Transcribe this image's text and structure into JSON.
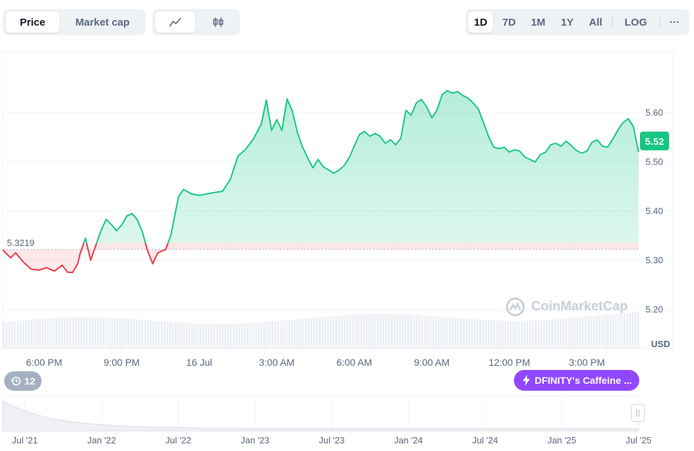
{
  "metric_tabs": [
    "Price",
    "Market cap"
  ],
  "active_metric": "Price",
  "chart_style_icons": [
    "line-chart-icon",
    "candlestick-icon"
  ],
  "range_options": [
    "1D",
    "7D",
    "1M",
    "1Y",
    "All",
    "LOG"
  ],
  "active_range": "1D",
  "more_label": "···",
  "current_price_label": "5.52",
  "reference_price_label": "5.3219",
  "currency_label": "USD",
  "history_badge_count": "12",
  "news_badge_text": "DFINITY's Caffeine ...",
  "watermark_text": "CoinMarketCap",
  "colors": {
    "up": "#16c784",
    "down": "#ea3943",
    "accent_purple": "#9147ff"
  },
  "overview_ticks": [
    "Jul '21",
    "Jan '22",
    "Jul '22",
    "Jan '23",
    "Jul '23",
    "Jan '24",
    "Jul '24",
    "Jan '25",
    "Jul '25"
  ],
  "chart_data": {
    "type": "line",
    "x_unit": "hours_from_start",
    "x_ticks": [
      {
        "label": "6:00 PM",
        "x": 1.6
      },
      {
        "label": "9:00 PM",
        "x": 4.6
      },
      {
        "label": "16 Jul",
        "x": 7.6
      },
      {
        "label": "3:00 AM",
        "x": 10.6
      },
      {
        "label": "6:00 AM",
        "x": 13.6
      },
      {
        "label": "9:00 AM",
        "x": 16.6
      },
      {
        "label": "12:00 PM",
        "x": 19.6
      },
      {
        "label": "3:00 PM",
        "x": 22.6
      }
    ],
    "y_ticks": [
      5.2,
      5.3,
      5.4,
      5.5,
      5.6
    ],
    "ylim": [
      5.1206,
      5.7237
    ],
    "xlim": [
      0,
      24.6
    ],
    "reference_price": 5.3219,
    "current_price": 5.52,
    "series": [
      {
        "values": [
          [
            0.0,
            5.321
          ],
          [
            0.3,
            5.305
          ],
          [
            0.5,
            5.315
          ],
          [
            0.8,
            5.296
          ],
          [
            1.1,
            5.282
          ],
          [
            1.4,
            5.28
          ],
          [
            1.7,
            5.285
          ],
          [
            2.0,
            5.278
          ],
          [
            2.3,
            5.29
          ],
          [
            2.5,
            5.276
          ],
          [
            2.7,
            5.275
          ],
          [
            2.9,
            5.293
          ],
          [
            3.0,
            5.315
          ],
          [
            3.2,
            5.345
          ],
          [
            3.4,
            5.3
          ],
          [
            3.6,
            5.33
          ],
          [
            3.8,
            5.36
          ],
          [
            4.0,
            5.383
          ],
          [
            4.2,
            5.373
          ],
          [
            4.4,
            5.36
          ],
          [
            4.6,
            5.372
          ],
          [
            4.8,
            5.39
          ],
          [
            5.0,
            5.395
          ],
          [
            5.2,
            5.383
          ],
          [
            5.4,
            5.358
          ],
          [
            5.6,
            5.32
          ],
          [
            5.8,
            5.293
          ],
          [
            6.0,
            5.315
          ],
          [
            6.3,
            5.322
          ],
          [
            6.5,
            5.35
          ],
          [
            6.8,
            5.43
          ],
          [
            7.0,
            5.444
          ],
          [
            7.3,
            5.435
          ],
          [
            7.6,
            5.432
          ],
          [
            7.9,
            5.435
          ],
          [
            8.2,
            5.438
          ],
          [
            8.5,
            5.44
          ],
          [
            8.8,
            5.464
          ],
          [
            9.1,
            5.512
          ],
          [
            9.4,
            5.526
          ],
          [
            9.7,
            5.547
          ],
          [
            10.0,
            5.577
          ],
          [
            10.2,
            5.626
          ],
          [
            10.4,
            5.564
          ],
          [
            10.6,
            5.586
          ],
          [
            10.8,
            5.564
          ],
          [
            11.0,
            5.628
          ],
          [
            11.2,
            5.604
          ],
          [
            11.4,
            5.56
          ],
          [
            11.6,
            5.53
          ],
          [
            11.8,
            5.508
          ],
          [
            12.0,
            5.488
          ],
          [
            12.2,
            5.505
          ],
          [
            12.4,
            5.49
          ],
          [
            12.6,
            5.484
          ],
          [
            12.8,
            5.477
          ],
          [
            13.0,
            5.483
          ],
          [
            13.2,
            5.492
          ],
          [
            13.4,
            5.508
          ],
          [
            13.6,
            5.532
          ],
          [
            13.8,
            5.556
          ],
          [
            14.0,
            5.562
          ],
          [
            14.2,
            5.552
          ],
          [
            14.4,
            5.558
          ],
          [
            14.6,
            5.552
          ],
          [
            14.8,
            5.538
          ],
          [
            15.0,
            5.545
          ],
          [
            15.2,
            5.535
          ],
          [
            15.4,
            5.548
          ],
          [
            15.6,
            5.605
          ],
          [
            15.8,
            5.595
          ],
          [
            16.0,
            5.62
          ],
          [
            16.2,
            5.627
          ],
          [
            16.4,
            5.612
          ],
          [
            16.6,
            5.59
          ],
          [
            16.8,
            5.605
          ],
          [
            17.0,
            5.637
          ],
          [
            17.2,
            5.645
          ],
          [
            17.4,
            5.64
          ],
          [
            17.6,
            5.643
          ],
          [
            17.8,
            5.635
          ],
          [
            18.0,
            5.63
          ],
          [
            18.2,
            5.62
          ],
          [
            18.4,
            5.608
          ],
          [
            18.6,
            5.58
          ],
          [
            18.8,
            5.551
          ],
          [
            19.0,
            5.53
          ],
          [
            19.2,
            5.527
          ],
          [
            19.4,
            5.53
          ],
          [
            19.6,
            5.52
          ],
          [
            19.8,
            5.525
          ],
          [
            20.0,
            5.522
          ],
          [
            20.2,
            5.51
          ],
          [
            20.4,
            5.505
          ],
          [
            20.6,
            5.5
          ],
          [
            20.8,
            5.515
          ],
          [
            21.0,
            5.52
          ],
          [
            21.2,
            5.535
          ],
          [
            21.4,
            5.538
          ],
          [
            21.6,
            5.532
          ],
          [
            21.8,
            5.542
          ],
          [
            22.0,
            5.533
          ],
          [
            22.2,
            5.523
          ],
          [
            22.4,
            5.518
          ],
          [
            22.6,
            5.522
          ],
          [
            22.8,
            5.54
          ],
          [
            23.0,
            5.545
          ],
          [
            23.2,
            5.532
          ],
          [
            23.4,
            5.53
          ],
          [
            23.6,
            5.546
          ],
          [
            23.8,
            5.565
          ],
          [
            24.0,
            5.58
          ],
          [
            24.2,
            5.588
          ],
          [
            24.4,
            5.572
          ],
          [
            24.6,
            5.52
          ]
        ]
      }
    ]
  }
}
